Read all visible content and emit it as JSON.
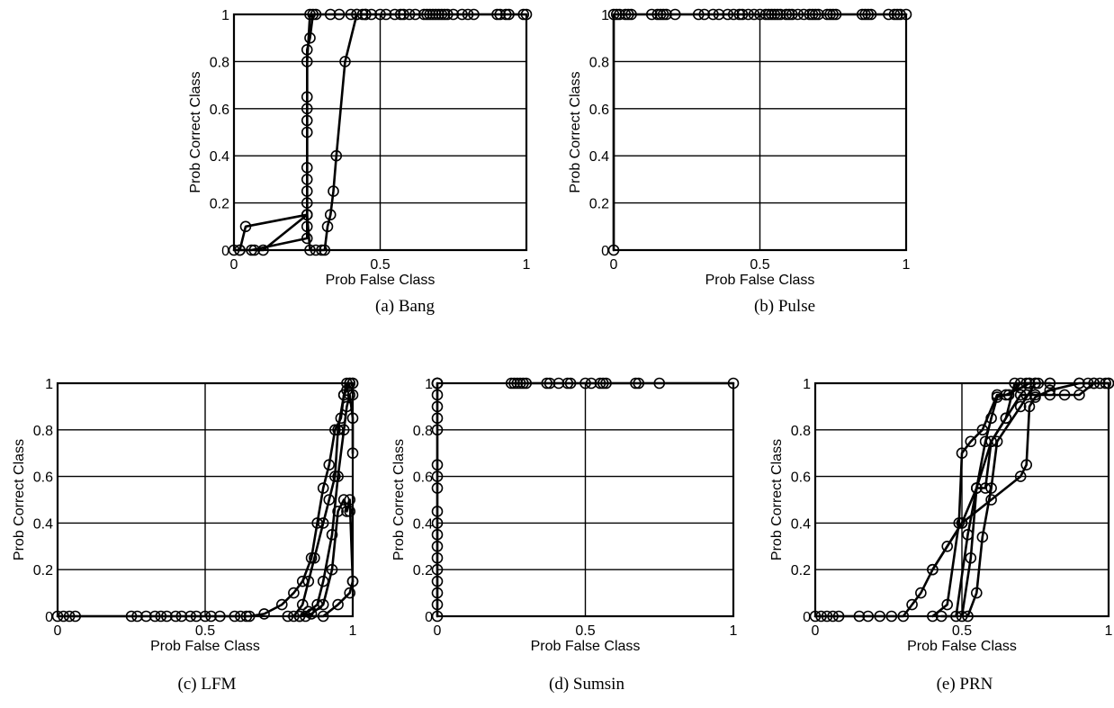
{
  "chart_data": [
    {
      "type": "line",
      "caption": "(a) Bang",
      "xlabel": "Prob False Class",
      "ylabel": "Prob Correct Class",
      "xlim": [
        0,
        1
      ],
      "ylim": [
        0,
        1
      ],
      "xticks": [
        0,
        0.5,
        1
      ],
      "xtick_labels": [
        "0",
        "0.5",
        "1"
      ],
      "yticks": [
        0,
        0.2,
        0.4,
        0.6,
        0.8,
        1
      ],
      "ytick_labels": [
        "0",
        "0.2",
        "0.4",
        "0.6",
        "0.8",
        "1"
      ],
      "grid": true,
      "series": [
        {
          "x": [
            0,
            0.02,
            0.04,
            0.25,
            0.25,
            0.26,
            0.28,
            0.33,
            0.36,
            0.4,
            0.5,
            0.6,
            0.7,
            0.8,
            0.9,
            1
          ],
          "y": [
            0,
            0,
            0.1,
            0.15,
            0.8,
            1,
            1,
            1,
            1,
            1,
            1,
            1,
            1,
            1,
            1,
            1
          ]
        },
        {
          "x": [
            0.02,
            0.06,
            0.25,
            0.25,
            0.25,
            0.25,
            0.25,
            0.25,
            0.25,
            0.25,
            0.25,
            0.25,
            0.25,
            0.25,
            0.26,
            0.27
          ],
          "y": [
            0,
            0,
            0.05,
            0.1,
            0.15,
            0.2,
            0.25,
            0.3,
            0.35,
            0.5,
            0.55,
            0.6,
            0.65,
            0.85,
            0.9,
            1
          ]
        },
        {
          "x": [
            0.07,
            0.1,
            0.25,
            0.26,
            0.28,
            0.3,
            0.31,
            0.32,
            0.33,
            0.34,
            0.35,
            0.38,
            0.42,
            0.45
          ],
          "y": [
            0,
            0,
            0.15,
            0,
            0,
            0,
            0,
            0.1,
            0.15,
            0.25,
            0.4,
            0.8,
            1,
            1
          ]
        }
      ],
      "markers": [
        {
          "x": 0.42,
          "y": 1
        },
        {
          "x": 0.44,
          "y": 1
        },
        {
          "x": 0.45,
          "y": 1
        },
        {
          "x": 0.47,
          "y": 1
        },
        {
          "x": 0.52,
          "y": 1
        },
        {
          "x": 0.55,
          "y": 1
        },
        {
          "x": 0.57,
          "y": 1
        },
        {
          "x": 0.58,
          "y": 1
        },
        {
          "x": 0.62,
          "y": 1
        },
        {
          "x": 0.65,
          "y": 1
        },
        {
          "x": 0.66,
          "y": 1
        },
        {
          "x": 0.67,
          "y": 1
        },
        {
          "x": 0.68,
          "y": 1
        },
        {
          "x": 0.69,
          "y": 1
        },
        {
          "x": 0.71,
          "y": 1
        },
        {
          "x": 0.72,
          "y": 1
        },
        {
          "x": 0.73,
          "y": 1
        },
        {
          "x": 0.75,
          "y": 1
        },
        {
          "x": 0.78,
          "y": 1
        },
        {
          "x": 0.82,
          "y": 1
        },
        {
          "x": 0.91,
          "y": 1
        },
        {
          "x": 0.93,
          "y": 1
        },
        {
          "x": 0.94,
          "y": 1
        },
        {
          "x": 0.99,
          "y": 1
        }
      ]
    },
    {
      "type": "line",
      "caption": "(b) Pulse",
      "xlabel": "Prob False Class",
      "ylabel": "Prob Correct Class",
      "xlim": [
        0,
        1
      ],
      "ylim": [
        0,
        1
      ],
      "xticks": [
        0,
        0.5,
        1
      ],
      "xtick_labels": [
        "0",
        "0.5",
        "1"
      ],
      "yticks": [
        0,
        0.2,
        0.4,
        0.6,
        0.8,
        1
      ],
      "ytick_labels": [
        "0",
        "0.2",
        "0.4",
        "0.6",
        "0.8",
        "1"
      ],
      "grid": true,
      "series": [
        {
          "x": [
            0,
            0,
            0.02,
            0.04,
            0.06,
            0.13,
            0.16,
            0.17,
            0.18,
            0.21,
            0.29,
            0.31,
            0.34,
            0.39,
            0.41,
            0.43,
            0.46,
            0.48,
            0.5,
            0.52,
            0.53,
            0.54,
            0.55,
            0.57,
            0.59,
            0.6,
            0.63,
            0.65,
            0.67,
            0.69,
            0.7,
            0.73,
            0.75,
            0.76,
            0.85,
            0.87,
            0.88,
            0.94,
            0.96,
            0.98,
            1
          ],
          "y": [
            0,
            1,
            1,
            1,
            1,
            1,
            1,
            1,
            1,
            1,
            1,
            1,
            1,
            1,
            1,
            1,
            1,
            1,
            1,
            1,
            1,
            1,
            1,
            1,
            1,
            1,
            1,
            1,
            1,
            1,
            1,
            1,
            1,
            1,
            1,
            1,
            1,
            1,
            1,
            1,
            1
          ]
        }
      ],
      "markers": [
        {
          "x": 0.01,
          "y": 1
        },
        {
          "x": 0.05,
          "y": 1
        },
        {
          "x": 0.15,
          "y": 1
        },
        {
          "x": 0.36,
          "y": 1
        },
        {
          "x": 0.44,
          "y": 1
        },
        {
          "x": 0.56,
          "y": 1
        },
        {
          "x": 0.61,
          "y": 1
        },
        {
          "x": 0.68,
          "y": 1
        },
        {
          "x": 0.74,
          "y": 1
        },
        {
          "x": 0.86,
          "y": 1
        },
        {
          "x": 0.97,
          "y": 1
        }
      ]
    },
    {
      "type": "line",
      "caption": "(c) LFM",
      "xlabel": "Prob False Class",
      "ylabel": "Prob Correct Class",
      "xlim": [
        0,
        1
      ],
      "ylim": [
        0,
        1
      ],
      "xticks": [
        0,
        0.5,
        1
      ],
      "xtick_labels": [
        "0",
        "0.5",
        "1"
      ],
      "yticks": [
        0,
        0.2,
        0.4,
        0.6,
        0.8,
        1
      ],
      "ytick_labels": [
        "0",
        "0.2",
        "0.4",
        "0.6",
        "0.8",
        "1"
      ],
      "grid": true,
      "series": [
        {
          "x": [
            0,
            0.02,
            0.04,
            0.06,
            0.25,
            0.3,
            0.4,
            0.5,
            0.55,
            0.6,
            0.65,
            0.7,
            0.76,
            0.8,
            0.83,
            0.86,
            0.88,
            0.9,
            0.92,
            0.94,
            0.96,
            0.97,
            0.98,
            0.99,
            1
          ],
          "y": [
            0,
            0,
            0,
            0,
            0,
            0,
            0,
            0,
            0,
            0,
            0,
            0.01,
            0.05,
            0.1,
            0.15,
            0.25,
            0.4,
            0.55,
            0.65,
            0.8,
            0.85,
            0.95,
            1,
            1,
            1
          ]
        },
        {
          "x": [
            0.8,
            0.83,
            0.85,
            0.87,
            0.9,
            0.92,
            0.94,
            0.95,
            0.97,
            0.98,
            0.99,
            1
          ],
          "y": [
            0,
            0.05,
            0.15,
            0.25,
            0.4,
            0.5,
            0.6,
            0.8,
            0.95,
            0.97,
            1,
            1
          ]
        },
        {
          "x": [
            0.78,
            0.82,
            0.85,
            0.88,
            0.9,
            0.93,
            0.95,
            0.97,
            0.98,
            0.99,
            1,
            1
          ],
          "y": [
            0,
            0,
            0.02,
            0.05,
            0.15,
            0.35,
            0.6,
            0.8,
            0.9,
            0.95,
            0.85,
            0.7
          ]
        },
        {
          "x": [
            0.82,
            0.86,
            0.9,
            0.93,
            0.95,
            0.97,
            0.98,
            0.99,
            1
          ],
          "y": [
            0,
            0.01,
            0.05,
            0.2,
            0.45,
            0.5,
            0.45,
            0.5,
            0.15
          ]
        },
        {
          "x": [
            0.84,
            0.9,
            0.95,
            0.99,
            1
          ],
          "y": [
            0,
            0,
            0.05,
            0.1,
            0.15
          ]
        }
      ],
      "markers": [
        {
          "x": 0.27,
          "y": 0
        },
        {
          "x": 0.33,
          "y": 0
        },
        {
          "x": 0.35,
          "y": 0
        },
        {
          "x": 0.37,
          "y": 0
        },
        {
          "x": 0.42,
          "y": 0
        },
        {
          "x": 0.45,
          "y": 0
        },
        {
          "x": 0.47,
          "y": 0
        },
        {
          "x": 0.52,
          "y": 0
        },
        {
          "x": 0.62,
          "y": 0
        },
        {
          "x": 0.64,
          "y": 0
        },
        {
          "x": 0.99,
          "y": 0.45
        },
        {
          "x": 1,
          "y": 0.95
        }
      ]
    },
    {
      "type": "line",
      "caption": "(d) Sumsin",
      "xlabel": "Prob False Class",
      "ylabel": "Prob Correct Class",
      "xlim": [
        0,
        1
      ],
      "ylim": [
        0,
        1
      ],
      "xticks": [
        0,
        0.5,
        1
      ],
      "xtick_labels": [
        "0",
        "0.5",
        "1"
      ],
      "yticks": [
        0,
        0.2,
        0.4,
        0.6,
        0.8,
        1
      ],
      "ytick_labels": [
        "0",
        "0.2",
        "0.4",
        "0.6",
        "0.8",
        "1"
      ],
      "grid": true,
      "series": [
        {
          "x": [
            0,
            0,
            0,
            0,
            0,
            0,
            0,
            0,
            0,
            0,
            0,
            0,
            0,
            0,
            0,
            0,
            0,
            0,
            0,
            0,
            0
          ],
          "y": [
            0,
            0.05,
            0.1,
            0.15,
            0.2,
            0.25,
            0.3,
            0.35,
            0.4,
            0.45,
            0.55,
            0.6,
            0.65,
            0.8,
            0.85,
            0.9,
            0.95,
            1,
            1,
            1,
            1
          ]
        },
        {
          "x": [
            0.25,
            0.26,
            0.27,
            0.28,
            0.29,
            0.3,
            0.37,
            0.38,
            0.41,
            0.44,
            0.5,
            0.52,
            0.55,
            0.57,
            0.67,
            0.68,
            0.75,
            1
          ],
          "y": [
            1,
            1,
            1,
            1,
            1,
            1,
            1,
            1,
            1,
            1,
            1,
            1,
            1,
            1,
            1,
            1,
            1,
            1
          ]
        }
      ],
      "markers": [
        {
          "x": 0.56,
          "y": 1
        },
        {
          "x": 0.45,
          "y": 1
        }
      ]
    },
    {
      "type": "line",
      "caption": "(e) PRN",
      "xlabel": "Prob False Class",
      "ylabel": "Prob Correct Class",
      "xlim": [
        0,
        1
      ],
      "ylim": [
        0,
        1
      ],
      "xticks": [
        0,
        0.5,
        1
      ],
      "xtick_labels": [
        "0",
        "0.5",
        "1"
      ],
      "yticks": [
        0,
        0.2,
        0.4,
        0.6,
        0.8,
        1
      ],
      "ytick_labels": [
        "0",
        "0.2",
        "0.4",
        "0.6",
        "0.8",
        "1"
      ],
      "grid": true,
      "series": [
        {
          "x": [
            0,
            0.02,
            0.04,
            0.06,
            0.08,
            0.15,
            0.18,
            0.22,
            0.26,
            0.3,
            0.33,
            0.36,
            0.4,
            0.45,
            0.5,
            0.55,
            0.6,
            0.65,
            0.7,
            0.72,
            0.75,
            0.8,
            0.85,
            0.9,
            0.95,
            1
          ],
          "y": [
            0,
            0,
            0,
            0,
            0,
            0,
            0,
            0,
            0,
            0,
            0.05,
            0.1,
            0.2,
            0.3,
            0.4,
            0.55,
            0.75,
            0.85,
            0.95,
            0.95,
            0.95,
            0.95,
            0.95,
            0.95,
            1,
            1
          ]
        },
        {
          "x": [
            0.4,
            0.45,
            0.49,
            0.5,
            0.53,
            0.57,
            0.62,
            0.66,
            0.7,
            0.73,
            0.76
          ],
          "y": [
            0,
            0.05,
            0.4,
            0.7,
            0.75,
            0.8,
            0.95,
            0.95,
            1,
            1,
            1
          ]
        },
        {
          "x": [
            0.43,
            0.48,
            0.52,
            0.55,
            0.58,
            0.6,
            0.65,
            0.68,
            0.72,
            0.75,
            0.8
          ],
          "y": [
            0,
            0,
            0.35,
            0.55,
            0.55,
            0.75,
            0.85,
            1,
            1,
            1,
            1
          ]
        },
        {
          "x": [
            0.5,
            0.53,
            0.55,
            0.58,
            0.6,
            0.62,
            0.65,
            0.7,
            0.73
          ],
          "y": [
            0,
            0.25,
            0.55,
            0.75,
            0.85,
            0.94,
            0.95,
            0.98,
            1
          ]
        },
        {
          "x": [
            0.4,
            0.5,
            0.6,
            0.7,
            0.72,
            0.73,
            0.75,
            0.8,
            0.9,
            0.95,
            1
          ],
          "y": [
            0.2,
            0.4,
            0.5,
            0.6,
            0.65,
            0.9,
            0.94,
            0.97,
            1,
            1,
            1
          ]
        },
        {
          "x": [
            0.52,
            0.55,
            0.57,
            0.6,
            0.62,
            0.7,
            0.75
          ],
          "y": [
            0,
            0.1,
            0.34,
            0.55,
            0.75,
            0.9,
            1
          ]
        }
      ],
      "markers": [
        {
          "x": 0.9,
          "y": 1
        },
        {
          "x": 0.93,
          "y": 1
        },
        {
          "x": 0.97,
          "y": 1
        },
        {
          "x": 0.99,
          "y": 1
        },
        {
          "x": 0.8,
          "y": 1
        }
      ]
    }
  ]
}
